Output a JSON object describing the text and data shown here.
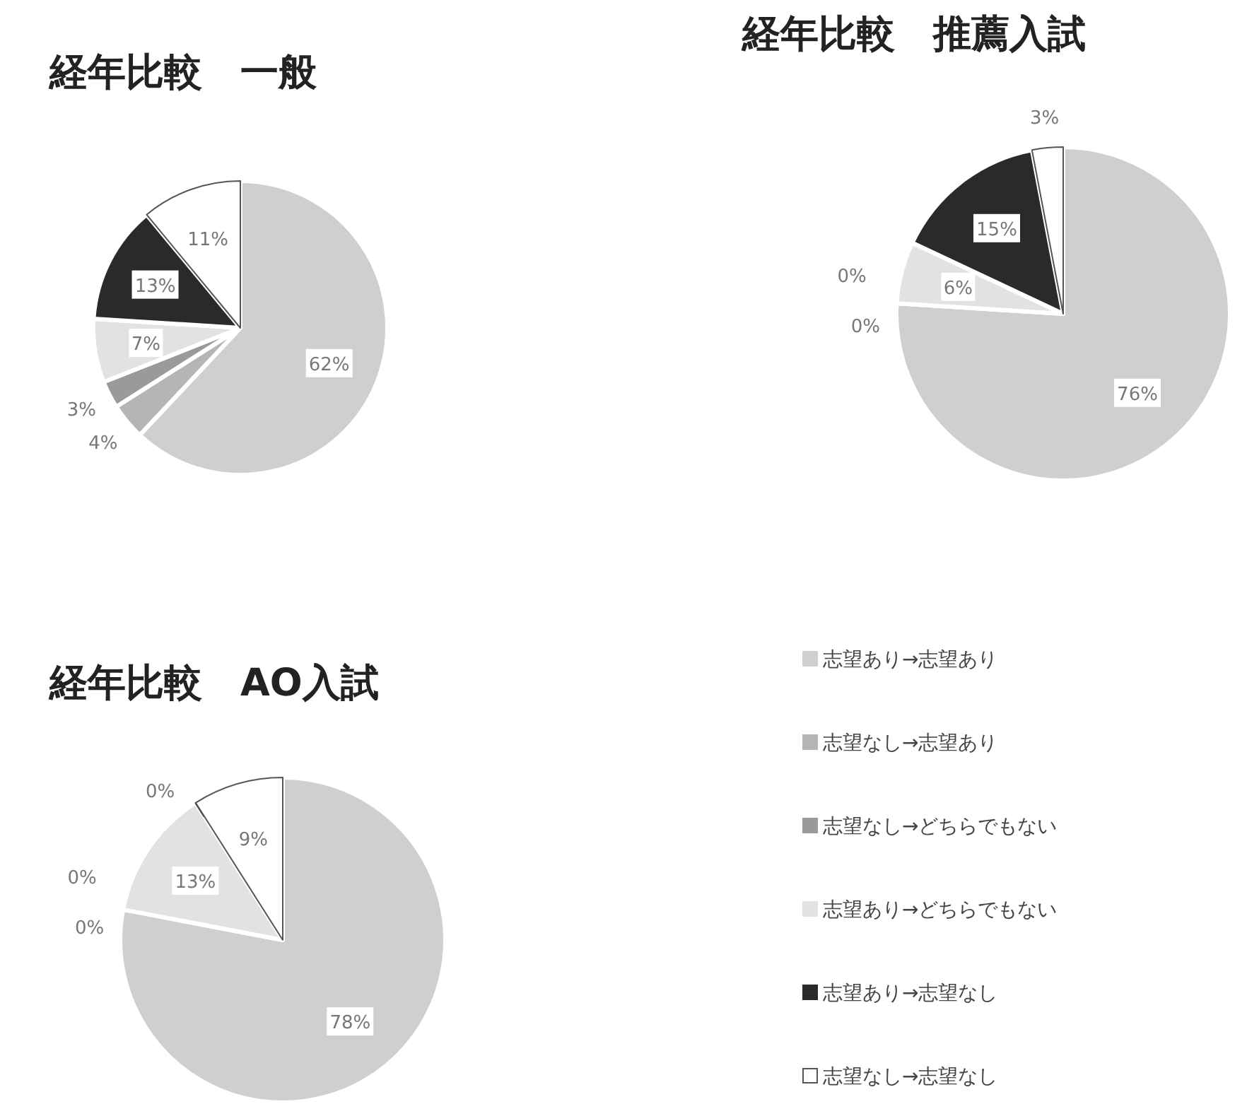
{
  "chart_data": [
    {
      "type": "pie",
      "title": "経年比較　一般",
      "categories": [
        null,
        null,
        null,
        null,
        null,
        null
      ],
      "values": [
        62,
        4,
        3,
        7,
        13,
        11
      ],
      "value_labels": [
        "62%",
        "4%",
        "3%",
        "7%",
        "13%",
        "11%"
      ],
      "colors": [
        "#cfcfcf",
        "#b5b5b5",
        "#9a9a9a",
        "#e2e2e2",
        "#2a2a2a",
        "#ffffff"
      ],
      "legend": false
    },
    {
      "type": "pie",
      "title": "経年比較　推薦入試",
      "categories": [
        null,
        null,
        null,
        null,
        null,
        null
      ],
      "values": [
        76,
        0,
        0,
        6,
        15,
        3
      ],
      "value_labels": [
        "76%",
        "0%",
        "0%",
        "6%",
        "15%",
        "3%"
      ],
      "colors": [
        "#cfcfcf",
        "#b5b5b5",
        "#9a9a9a",
        "#e2e2e2",
        "#2a2a2a",
        "#ffffff"
      ],
      "legend": false
    },
    {
      "type": "pie",
      "title": "経年比較　AO入試",
      "categories": [
        "志望あり→志望あり",
        "志望なし→志望あり",
        "志望なし→どちらでもない",
        "志望あり→どちらでもない",
        "志望あり→志望なし",
        "志望なし→志望なし"
      ],
      "values": [
        78,
        0,
        0,
        13,
        0,
        9
      ],
      "value_labels": [
        "78%",
        "0%",
        "0%",
        "13%",
        "0%",
        "9%"
      ],
      "colors": [
        "#cfcfcf",
        "#b5b5b5",
        "#9a9a9a",
        "#e2e2e2",
        "#2a2a2a",
        "#ffffff"
      ],
      "legend": "right"
    }
  ]
}
